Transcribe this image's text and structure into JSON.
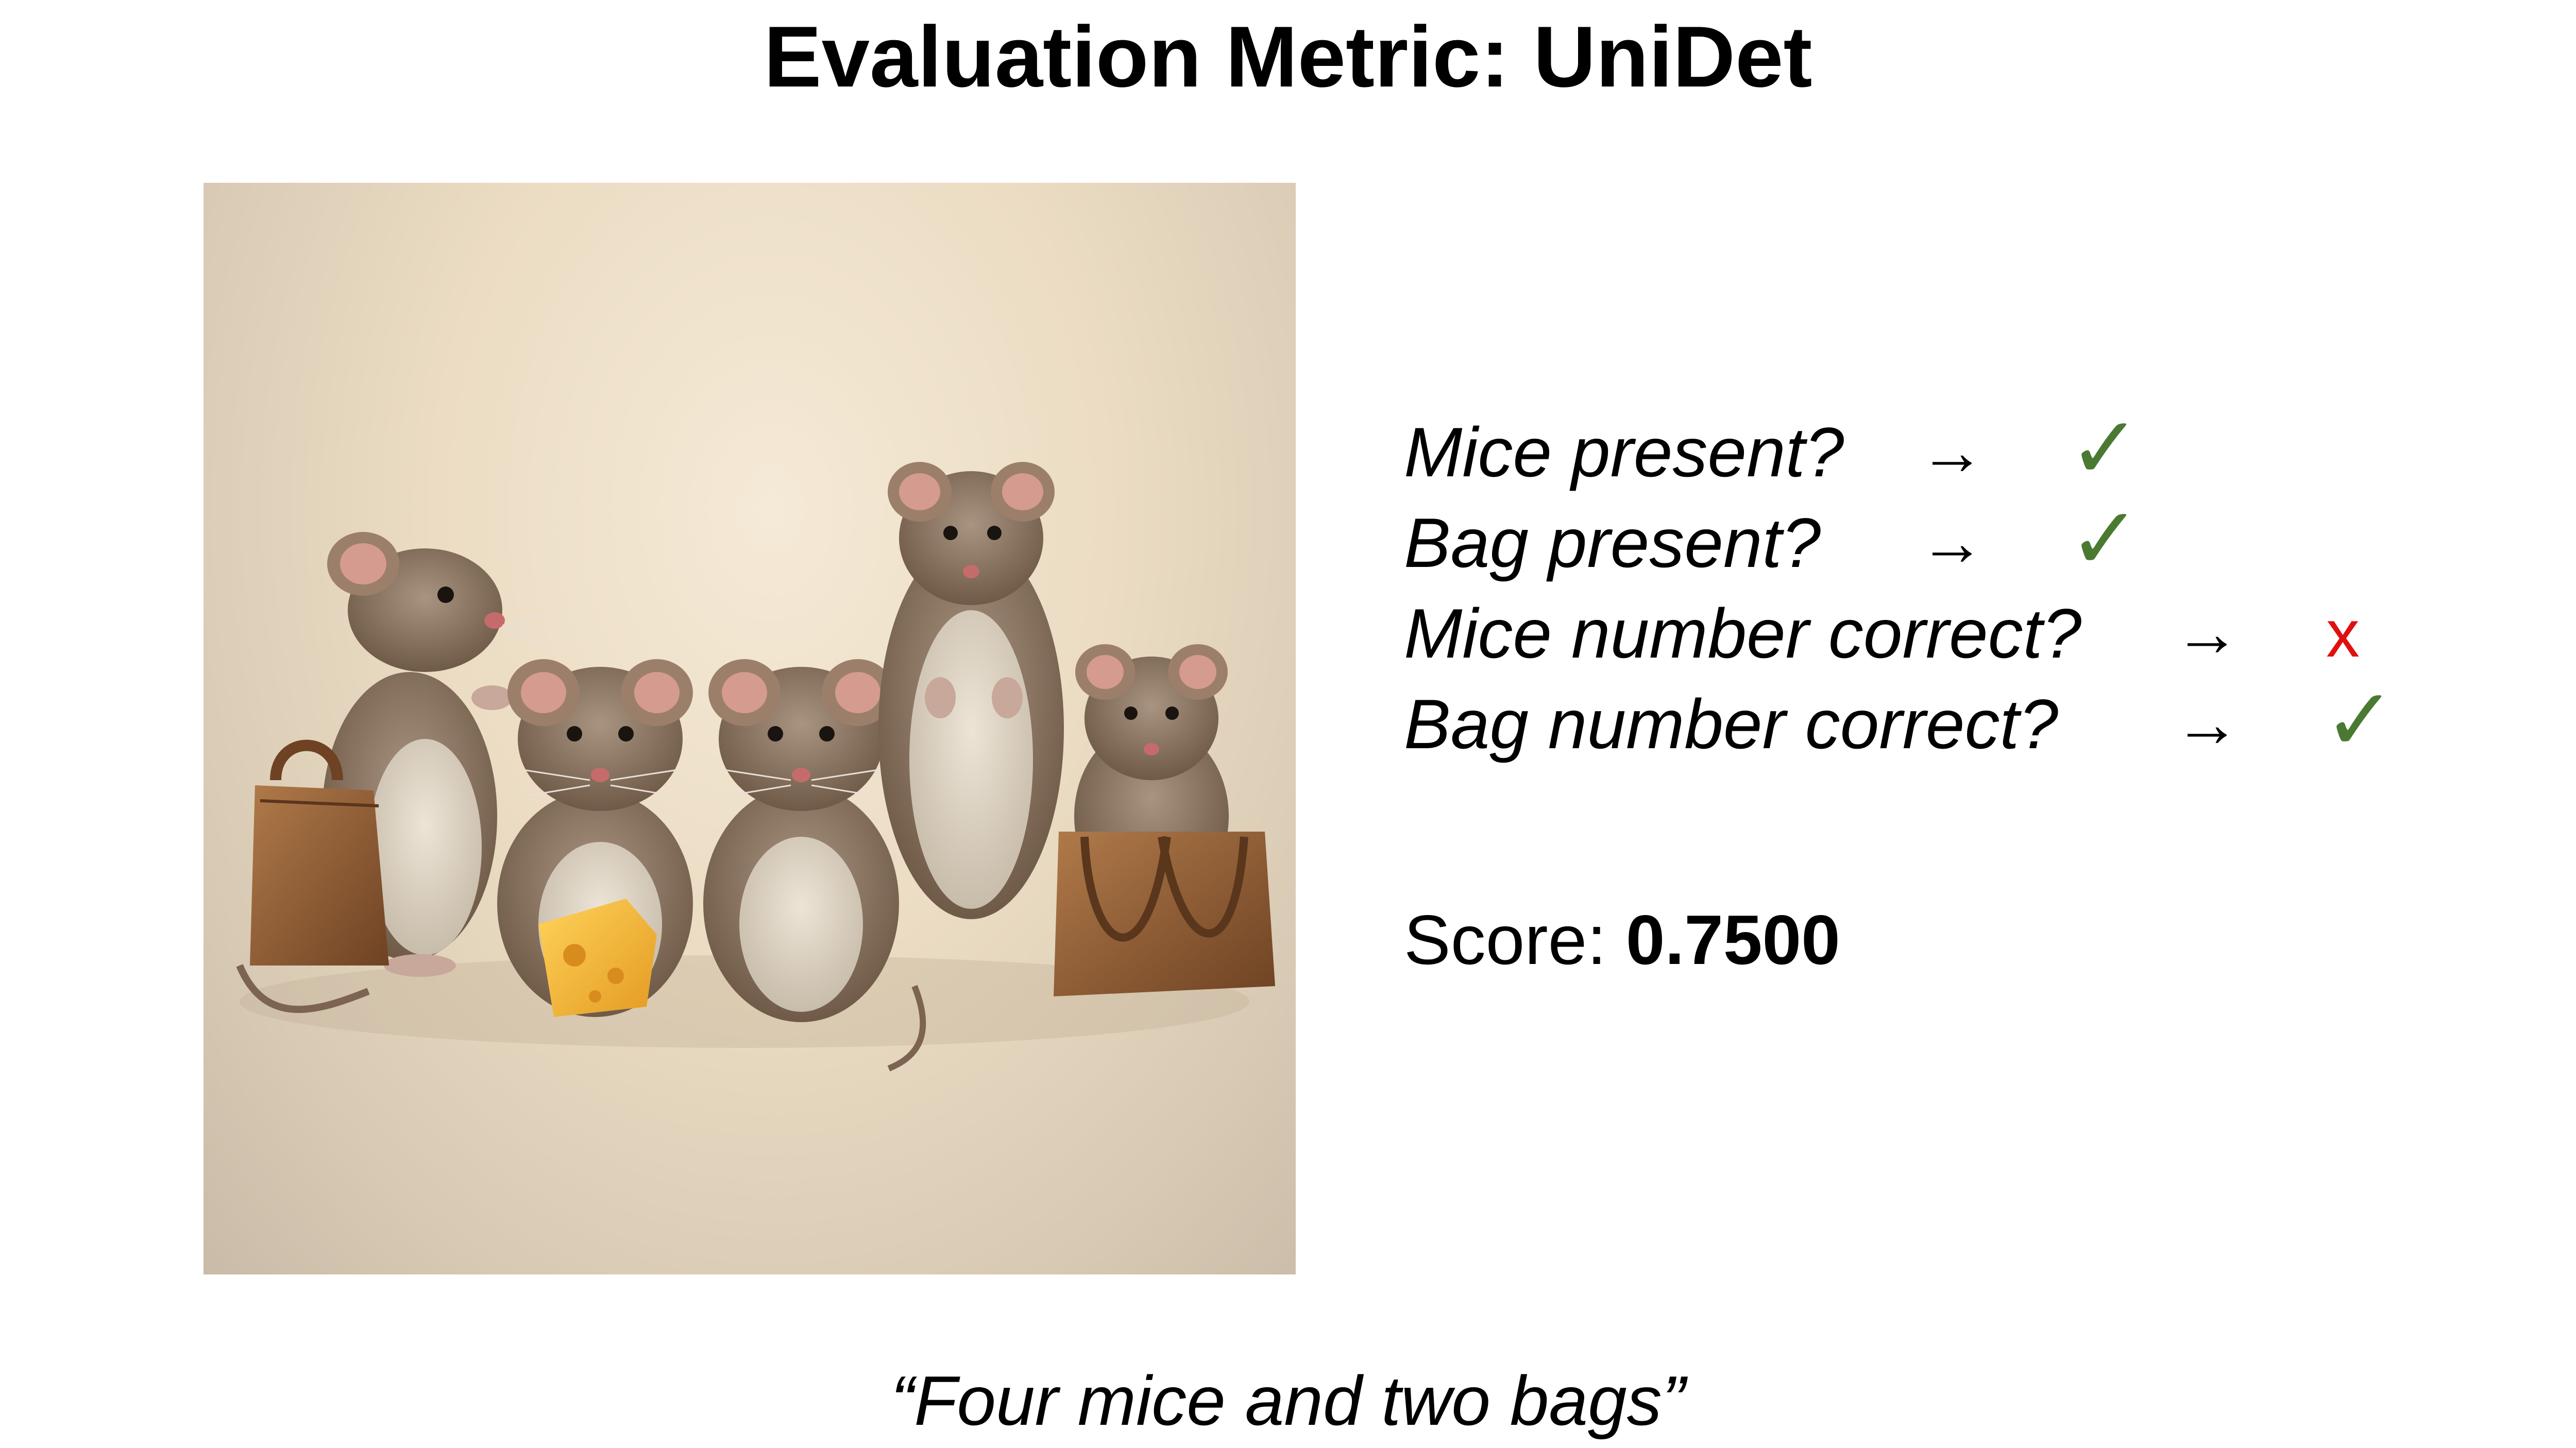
{
  "title": "Evaluation Metric: UniDet",
  "checks": [
    {
      "question": "Mice present?",
      "arrow": "→",
      "result": "✓",
      "result_color": "#4a7a32"
    },
    {
      "question": "Bag present?",
      "arrow": "→",
      "result": "✓",
      "result_color": "#4a7a32"
    },
    {
      "question": "Mice number correct?",
      "arrow": "→",
      "result": "x",
      "result_color": "#e01010"
    },
    {
      "question": "Bag number correct?",
      "arrow": "→",
      "result": "✓",
      "result_color": "#4a7a32"
    }
  ],
  "score": {
    "label": "Score: ",
    "value": "0.7500"
  },
  "caption": "“Four mice and two bags”",
  "colors": {
    "check_green": "#4a7a32",
    "cross_red": "#e01010",
    "mouse_fur": "#8a735f",
    "bag_leather": "#8e5a33",
    "cheese": "#f2b53d"
  }
}
